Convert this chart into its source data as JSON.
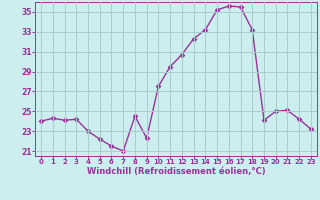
{
  "x": [
    0,
    1,
    2,
    3,
    4,
    5,
    6,
    7,
    8,
    9,
    10,
    11,
    12,
    13,
    14,
    15,
    16,
    17,
    18,
    19,
    20,
    21,
    22,
    23
  ],
  "y": [
    24.0,
    24.3,
    24.1,
    24.2,
    23.0,
    22.2,
    21.5,
    21.0,
    24.5,
    22.3,
    27.5,
    29.5,
    30.7,
    32.3,
    33.2,
    35.2,
    35.6,
    35.5,
    33.2,
    24.1,
    25.0,
    25.1,
    24.2,
    23.2
  ],
  "line_color": "#993399",
  "marker": "D",
  "marker_size": 2.5,
  "bg_color": "#cceeee",
  "grid_color": "#aacccc",
  "xlabel": "Windchill (Refroidissement éolien,°C)",
  "xlabel_color": "#993399",
  "tick_color": "#993399",
  "ylim": [
    20.5,
    36.0
  ],
  "xlim": [
    -0.5,
    23.5
  ],
  "yticks": [
    21,
    23,
    25,
    27,
    29,
    31,
    33,
    35
  ],
  "xticks": [
    0,
    1,
    2,
    3,
    4,
    5,
    6,
    7,
    8,
    9,
    10,
    11,
    12,
    13,
    14,
    15,
    16,
    17,
    18,
    19,
    20,
    21,
    22,
    23
  ]
}
